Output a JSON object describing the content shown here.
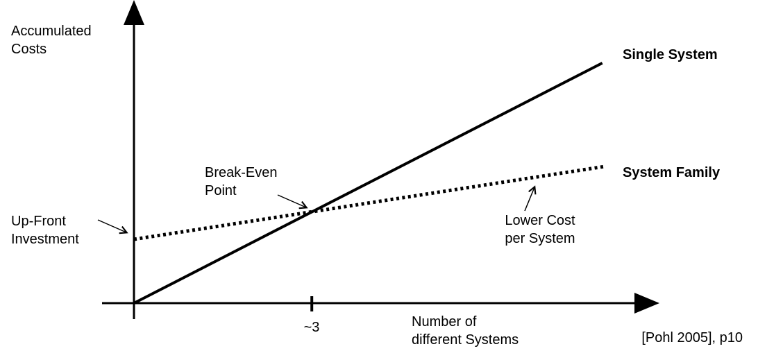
{
  "chart_data": {
    "type": "line",
    "title": "",
    "xlabel": "Number of\ndifferent Systems",
    "ylabel": "Accumulated\nCosts",
    "xlim": [
      0,
      8.7
    ],
    "ylim": [
      0,
      9.7
    ],
    "grid": false,
    "x_ticks": [
      {
        "value": 3,
        "label": "~3"
      }
    ],
    "series": [
      {
        "name": "Single System",
        "style": "solid",
        "stroke_width": 4,
        "points": [
          [
            0,
            0
          ],
          [
            7.9,
            7.9
          ]
        ]
      },
      {
        "name": "System Family",
        "style": "dotted",
        "stroke_width": 5,
        "points": [
          [
            0,
            2.1
          ],
          [
            7.95,
            4.5
          ]
        ]
      }
    ],
    "break_even_point": {
      "x": 3,
      "y": 3
    },
    "annotations": [
      {
        "label": "Up-Front\nInvestment",
        "points_to": "system-family y-intercept"
      },
      {
        "label": "Break-Even\nPoint",
        "points_to": "intersection of the two lines"
      },
      {
        "label": "Lower Cost\nper System",
        "points_to": "system-family line"
      }
    ],
    "legend_position": "line-end-labels"
  },
  "citation": "[Pohl 2005], p10",
  "colors": {
    "line": "#000000",
    "text": "#000000",
    "background": "#ffffff"
  }
}
